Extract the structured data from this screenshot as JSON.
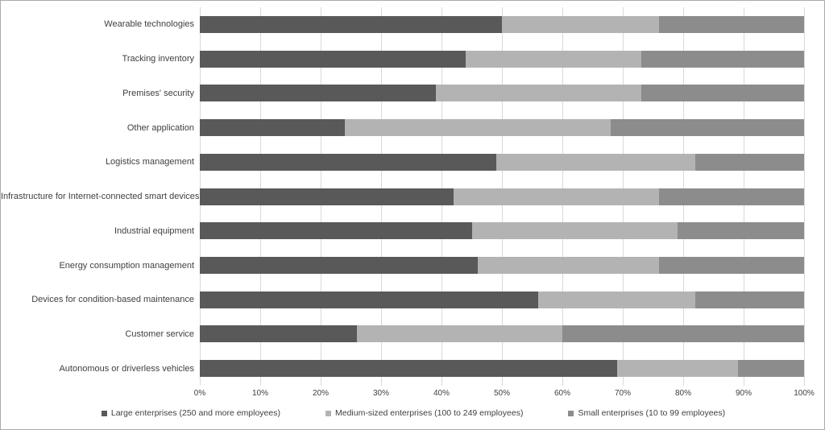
{
  "chart_data": {
    "type": "bar",
    "orientation": "horizontal-stacked",
    "title": "",
    "xlabel": "",
    "ylabel": "",
    "xlim": [
      0,
      100
    ],
    "grid": "vertical",
    "legend_position": "bottom",
    "x_ticks": [
      "0%",
      "10%",
      "20%",
      "30%",
      "40%",
      "50%",
      "60%",
      "70%",
      "80%",
      "90%",
      "100%"
    ],
    "categories": [
      "Wearable technologies",
      "Tracking inventory",
      "Premises' security",
      "Other application",
      "Logistics management",
      "Infrastructure for Internet-connected smart devices",
      "Industrial equipment",
      "Energy consumption management",
      "Devices for condition-based maintenance",
      "Customer service",
      "Autonomous or driverless vehicles"
    ],
    "series": [
      {
        "name": "Large enterprises (250 and more employees)",
        "color": "#595959",
        "values": [
          50,
          44,
          39,
          24,
          49,
          42,
          45,
          46,
          56,
          26,
          69
        ]
      },
      {
        "name": "Medium-sized enterprises (100 to 249 employees)",
        "color": "#b3b3b3",
        "values": [
          26,
          29,
          34,
          44,
          33,
          34,
          34,
          30,
          26,
          34,
          20
        ]
      },
      {
        "name": "Small enterprises (10 to 99 employees)",
        "color": "#8c8c8c",
        "values": [
          24,
          27,
          27,
          32,
          18,
          24,
          21,
          24,
          18,
          40,
          11
        ]
      }
    ]
  },
  "colors": {
    "gridline": "#d9d9d9",
    "axis_text": "#3f3f3f",
    "background": "#ffffff",
    "frame_border": "#ababab"
  }
}
